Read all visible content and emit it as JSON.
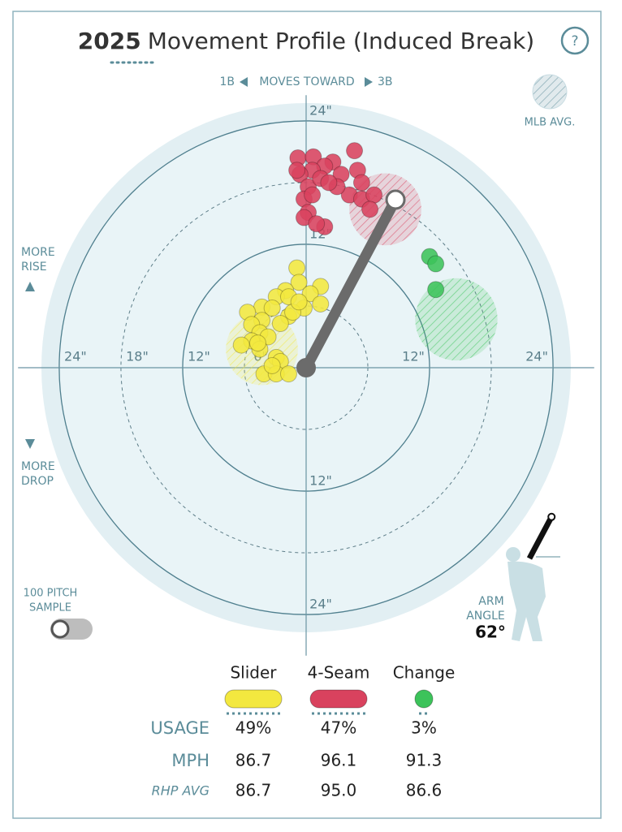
{
  "chart_data": {
    "type": "scatter",
    "title_year": "2025",
    "title": "Movement Profile (Induced Break)",
    "help": "?",
    "direction": {
      "left": "1B",
      "center": "MOVES TOWARD",
      "right": "3B"
    },
    "avg_legend": "MLB AVG.",
    "rise_label": [
      "MORE",
      "RISE"
    ],
    "drop_label": [
      "MORE",
      "DROP"
    ],
    "sample_label": [
      "100 PITCH",
      "SAMPLE"
    ],
    "arm_angle": {
      "label_lines": [
        "ARM",
        "ANGLE"
      ],
      "value": 62,
      "value_label": "62°"
    },
    "xlim": [
      -28,
      28
    ],
    "ylim": [
      -28,
      26.5
    ],
    "xticks": [
      {
        "value": -24,
        "label": "24\""
      },
      {
        "value": -18,
        "label": "18\""
      },
      {
        "value": -12,
        "label": "12\""
      },
      {
        "value": -6,
        "label": "6\""
      },
      {
        "value": 12,
        "label": "12\""
      },
      {
        "value": 24,
        "label": "24\""
      }
    ],
    "yticks": [
      {
        "value": 24,
        "label": "24\""
      },
      {
        "value": 12,
        "label": "12\""
      },
      {
        "value": -12,
        "label": "12\""
      },
      {
        "value": -24,
        "label": "24\""
      }
    ],
    "series": [
      {
        "name": "Slider",
        "color": "#f3e83f",
        "x": [
          -0.9,
          -0.7,
          1.4,
          -2.0,
          -2.9,
          -1.7,
          0.4,
          1.4,
          -0.2,
          -4.3,
          -3.3,
          -5.7,
          -4.3,
          -1.7,
          -2.5,
          -5.3,
          -4.5,
          -3.7,
          -5.3,
          -6.3,
          -4.5,
          -2.9,
          -2.5,
          -4.1,
          -2.9,
          -1.7,
          -3.3,
          -4.7,
          -1.3,
          -0.7
        ],
        "y": [
          9.7,
          8.3,
          7.9,
          7.5,
          6.9,
          6.9,
          7.2,
          6.2,
          5.8,
          5.9,
          5.8,
          5.4,
          4.6,
          5.0,
          4.3,
          4.2,
          3.4,
          3.0,
          2.6,
          2.2,
          1.8,
          1.0,
          0.6,
          -0.6,
          -0.6,
          -0.6,
          0.2,
          2.4,
          5.4,
          6.4
        ],
        "mlb_avg": [
          -4.3,
          1.8,
          3.5
        ]
      },
      {
        "name": "4-Seam",
        "color": "#d9425e",
        "x": [
          -0.8,
          0.7,
          4.7,
          2.6,
          1.8,
          0.6,
          -0.6,
          0.2,
          1.4,
          3.4,
          5.0,
          5.4,
          4.2,
          5.4,
          6.6,
          6.2,
          -0.2,
          0.6,
          0.2,
          -0.2,
          1.8,
          1.0,
          3.0,
          2.2,
          -0.9
        ],
        "y": [
          20.4,
          20.5,
          21.1,
          20.0,
          19.6,
          19.2,
          18.8,
          17.6,
          18.4,
          18.8,
          19.2,
          18.0,
          16.8,
          16.4,
          16.8,
          15.4,
          16.4,
          16.8,
          15.1,
          14.6,
          13.7,
          14.0,
          17.6,
          18.0,
          19.2
        ],
        "mlb_avg": [
          7.7,
          15.4,
          3.5
        ]
      },
      {
        "name": "Change",
        "color": "#3cc35a",
        "x": [
          12.0,
          12.6,
          12.6
        ],
        "y": [
          10.8,
          10.1,
          7.6
        ],
        "mlb_avg": [
          14.6,
          4.7,
          4.0
        ]
      }
    ],
    "table": {
      "rows": [
        {
          "label": "USAGE",
          "values": [
            "49%",
            "47%",
            "3%"
          ]
        },
        {
          "label": "MPH",
          "values": [
            "86.7",
            "96.1",
            "91.3"
          ]
        },
        {
          "label": "RHP AVG",
          "values": [
            "86.7",
            "95.0",
            "86.6"
          ]
        }
      ]
    }
  }
}
